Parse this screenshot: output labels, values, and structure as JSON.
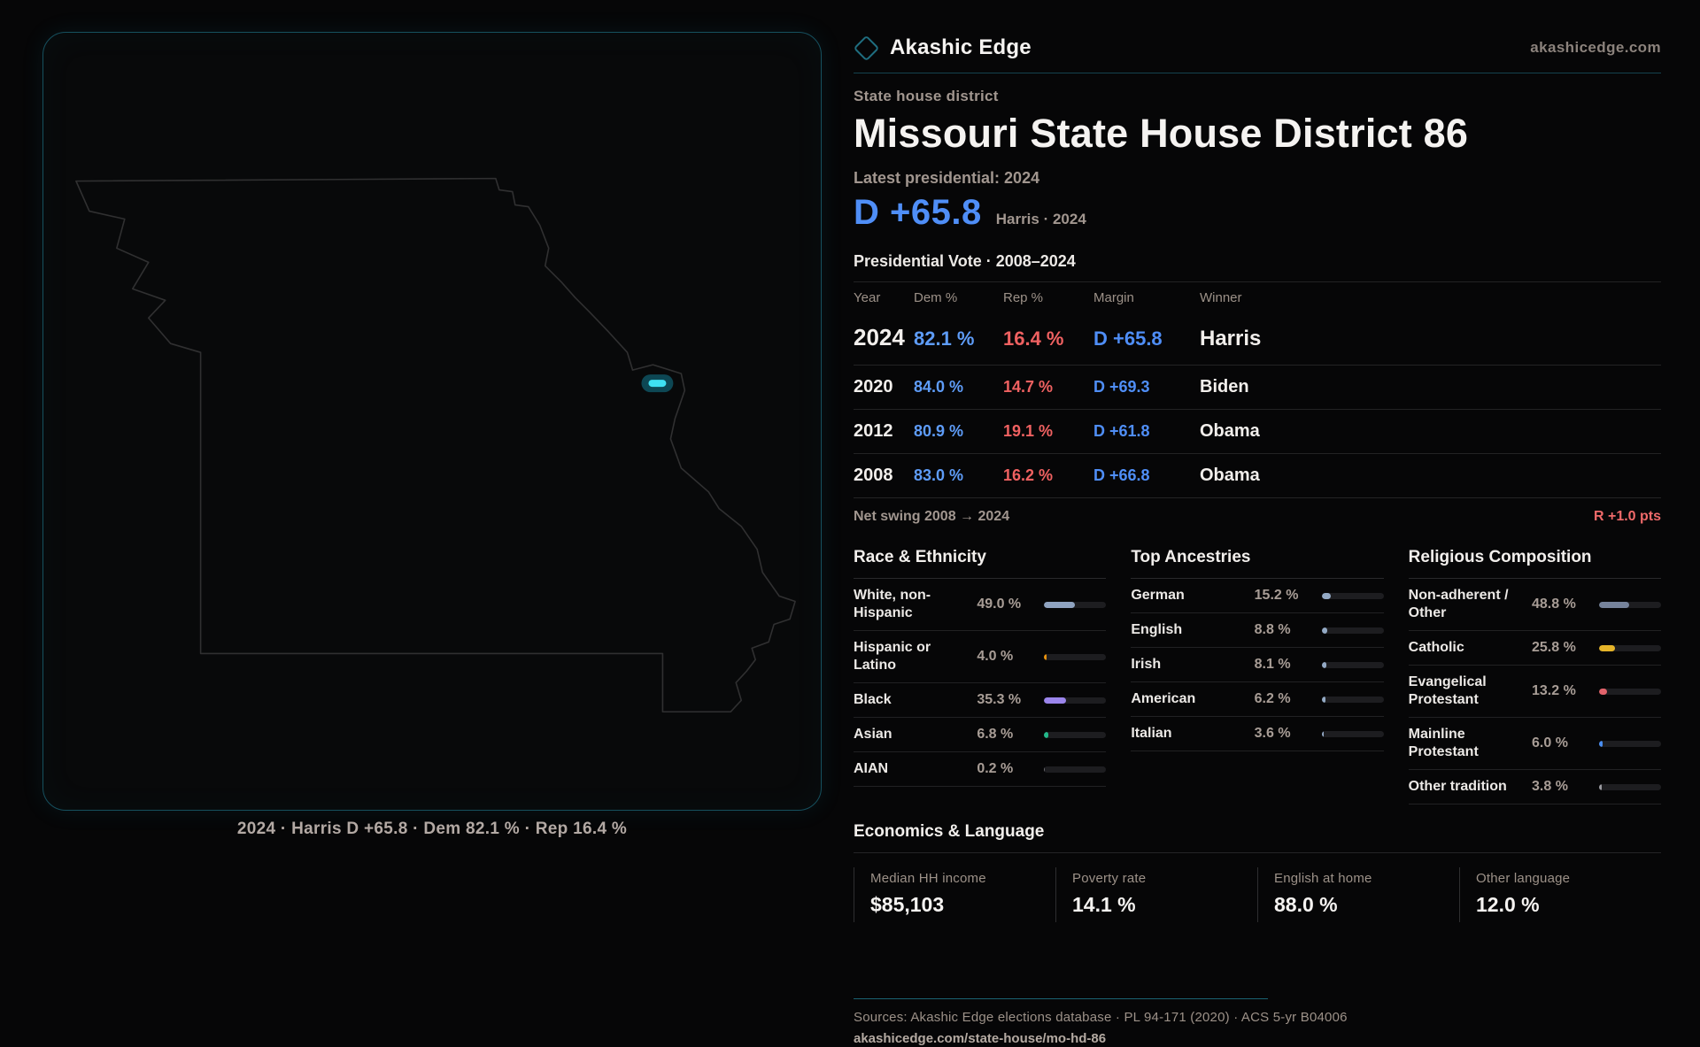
{
  "brand": {
    "name": "Akashic Edge",
    "domain": "akashicedge.com"
  },
  "header": {
    "eyebrow": "State house district",
    "title": "Missouri State House District 86",
    "latest_label": "Latest presidential: 2024",
    "headline_margin": "D +65.8",
    "headline_note": "Harris · 2024"
  },
  "map": {
    "caption": "2024 · Harris D +65.8 · Dem 82.1 % · Rep 16.4 %",
    "outline_color": "#303031",
    "marker_core_color": "#3fe0f2",
    "marker_halo_color": "#0d4754"
  },
  "vote_table": {
    "title": "Presidential Vote · 2008–2024",
    "columns": {
      "year": "Year",
      "dem": "Dem %",
      "rep": "Rep %",
      "margin": "Margin",
      "winner": "Winner"
    },
    "rows": [
      {
        "year": "2024",
        "dem": "82.1 %",
        "rep": "16.4 %",
        "margin": "D +65.8",
        "winner": "Harris"
      },
      {
        "year": "2020",
        "dem": "84.0 %",
        "rep": "14.7 %",
        "margin": "D +69.3",
        "winner": "Biden"
      },
      {
        "year": "2012",
        "dem": "80.9 %",
        "rep": "19.1 %",
        "margin": "D +61.8",
        "winner": "Obama"
      },
      {
        "year": "2008",
        "dem": "83.0 %",
        "rep": "16.2 %",
        "margin": "D +66.8",
        "winner": "Obama"
      }
    ],
    "net_swing_label": "Net swing 2008 → 2024",
    "net_swing_value": "R +1.0 pts"
  },
  "demographics": {
    "race": {
      "title": "Race & Ethnicity",
      "rows": [
        {
          "label": "White, non-Hispanic",
          "value": "49.0 %",
          "pct": 49.0,
          "color": "#8fa3c0"
        },
        {
          "label": "Hispanic or Latino",
          "value": "4.0 %",
          "pct": 4.0,
          "color": "#e8920f"
        },
        {
          "label": "Black",
          "value": "35.3 %",
          "pct": 35.3,
          "color": "#9b85ec"
        },
        {
          "label": "Asian",
          "value": "6.8 %",
          "pct": 6.8,
          "color": "#23b88a"
        },
        {
          "label": "AIAN",
          "value": "0.2 %",
          "pct": 0.2,
          "color": "#6a6a70"
        }
      ]
    },
    "ancestries": {
      "title": "Top Ancestries",
      "rows": [
        {
          "label": "German",
          "value": "15.2 %",
          "pct": 15.2,
          "color": "#93a9c4"
        },
        {
          "label": "English",
          "value": "8.8 %",
          "pct": 8.8,
          "color": "#93a9c4"
        },
        {
          "label": "Irish",
          "value": "8.1 %",
          "pct": 8.1,
          "color": "#93a9c4"
        },
        {
          "label": "American",
          "value": "6.2 %",
          "pct": 6.2,
          "color": "#93a9c4"
        },
        {
          "label": "Italian",
          "value": "3.6 %",
          "pct": 3.6,
          "color": "#93a9c4"
        }
      ]
    },
    "religion": {
      "title": "Religious Composition",
      "rows": [
        {
          "label": "Non-adherent / Other",
          "value": "48.8 %",
          "pct": 48.8,
          "color": "#76839b"
        },
        {
          "label": "Catholic",
          "value": "25.8 %",
          "pct": 25.8,
          "color": "#e5b429"
        },
        {
          "label": "Evangelical Protestant",
          "value": "13.2 %",
          "pct": 13.2,
          "color": "#e2636b"
        },
        {
          "label": "Mainline Protestant",
          "value": "6.0 %",
          "pct": 6.0,
          "color": "#4a8df0"
        },
        {
          "label": "Other tradition",
          "value": "3.8 %",
          "pct": 3.8,
          "color": "#9a9aa0"
        }
      ]
    }
  },
  "economics": {
    "title": "Economics & Language",
    "stats": [
      {
        "label": "Median HH income",
        "value": "$85,103"
      },
      {
        "label": "Poverty rate",
        "value": "14.1 %"
      },
      {
        "label": "English at home",
        "value": "88.0 %"
      },
      {
        "label": "Other language",
        "value": "12.0 %"
      }
    ]
  },
  "footer": {
    "sources": "Sources: Akashic Edge elections database · PL 94-171 (2020) · ACS 5-yr B04006",
    "permalink": "akashicedge.com/state-house/mo-hd-86"
  }
}
